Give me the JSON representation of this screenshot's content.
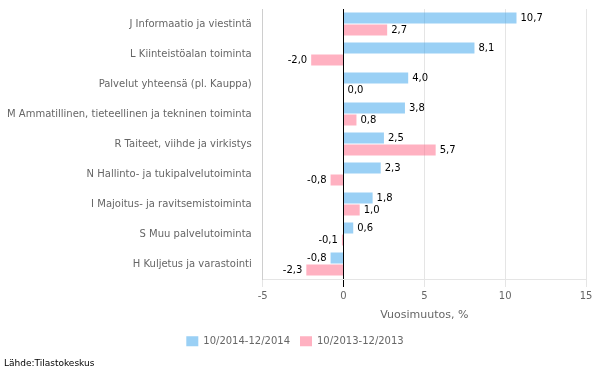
{
  "chart_data": {
    "type": "bar",
    "orientation": "horizontal",
    "categories": [
      "J Informaatio ja viestintä",
      "L Kiinteistöalan toiminta",
      "Palvelut yhteensä (pl. Kauppa)",
      "M Ammatillinen, tieteellinen ja tekninen toiminta",
      "R Taiteet, viihde ja virkistys",
      "N Hallinto- ja tukipalvelutoiminta",
      "I Majoitus- ja ravitsemistoiminta",
      "S Muu palvelutoiminta",
      "H Kuljetus ja varastointi"
    ],
    "series": [
      {
        "name": "10/2014-12/2014",
        "values": [
          10.7,
          8.1,
          4.0,
          3.8,
          2.5,
          2.3,
          1.8,
          0.6,
          -0.8
        ],
        "value_labels": [
          "10,7",
          "8,1",
          "4,0",
          "3,8",
          "2,5",
          "2,3",
          "1,8",
          "0,6",
          "-0,8"
        ]
      },
      {
        "name": "10/2013-12/2013",
        "values": [
          2.7,
          -2.0,
          0.0,
          0.8,
          5.7,
          -0.8,
          1.0,
          -0.1,
          -2.3
        ],
        "value_labels": [
          "2,7",
          "-2,0",
          "0,0",
          "0,8",
          "5,7",
          "-0,8",
          "1,0",
          "-0,1",
          "-2,3"
        ]
      }
    ],
    "xlabel": "Vuosimuutos, %",
    "xlim": [
      -5,
      15
    ],
    "xticks": [
      -5,
      0,
      5,
      10,
      15
    ],
    "grid": true,
    "legend": "bottom",
    "data_labels": true,
    "annotations": [
      "Lähde:Tilastokeskus"
    ]
  }
}
